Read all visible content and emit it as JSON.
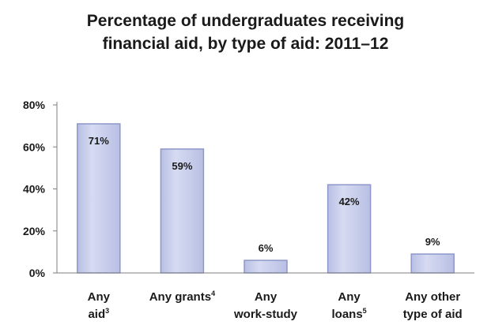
{
  "chart_data": {
    "type": "bar",
    "title_lines": [
      "Percentage of undergraduates receiving",
      "financial aid, by type of aid: 2011–12"
    ],
    "categories": [
      {
        "lines": [
          {
            "text": "Any",
            "sup": ""
          },
          {
            "text": "aid",
            "sup": "3"
          }
        ]
      },
      {
        "lines": [
          {
            "text": "Any grants",
            "sup": "4"
          }
        ]
      },
      {
        "lines": [
          {
            "text": "Any",
            "sup": ""
          },
          {
            "text": "work-study",
            "sup": ""
          }
        ]
      },
      {
        "lines": [
          {
            "text": "Any",
            "sup": ""
          },
          {
            "text": "loans",
            "sup": "5"
          }
        ]
      },
      {
        "lines": [
          {
            "text": "Any other",
            "sup": ""
          },
          {
            "text": "type of aid",
            "sup": ""
          }
        ]
      }
    ],
    "values": [
      71,
      59,
      6,
      42,
      9
    ],
    "value_labels": [
      "71%",
      "59%",
      "6%",
      "42%",
      "9%"
    ],
    "ylim": [
      0,
      80
    ],
    "yticks": [
      0,
      20,
      40,
      60,
      80
    ],
    "ytick_labels": [
      "0%",
      "20%",
      "40%",
      "60%",
      "80%"
    ],
    "xlabel": "",
    "ylabel": "",
    "grid": false,
    "legend": "none",
    "colors": {
      "bar_fill": "#b8bfe3",
      "bar_edge": "#8e97c9",
      "bar_highlight": "#d6dbf2",
      "axis": "#7f7f7f",
      "text": "#1a1a1a"
    }
  }
}
